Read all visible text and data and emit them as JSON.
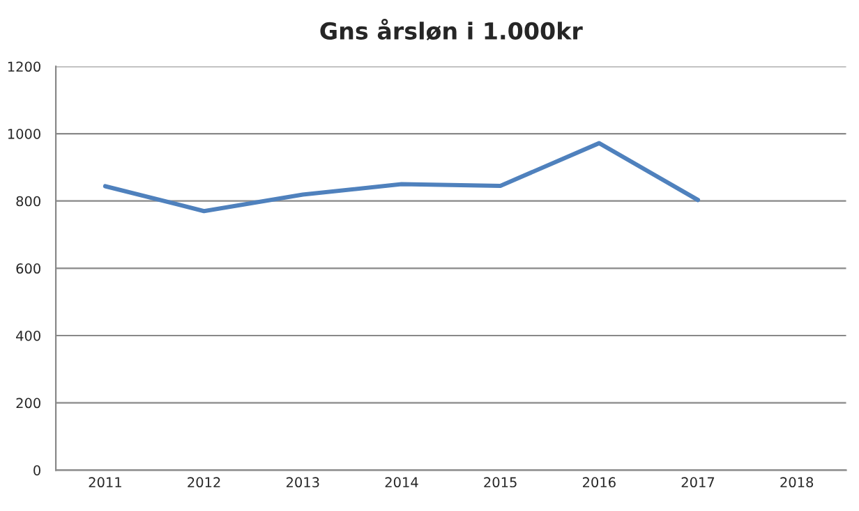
{
  "chart_data": {
    "type": "line",
    "title": "Gns årsløn i 1.000kr",
    "categories": [
      "2011",
      "2012",
      "2013",
      "2014",
      "2015",
      "2016",
      "2017",
      "2018"
    ],
    "series": [
      {
        "color": "#4f81bd",
        "values": [
          844,
          770,
          819,
          850,
          845,
          972,
          803,
          null
        ]
      }
    ],
    "ylim": [
      0,
      1200
    ],
    "yticks": [
      0,
      200,
      400,
      600,
      800,
      1000,
      1200
    ],
    "grid": "y",
    "marker": "none",
    "line_style": "solid"
  }
}
